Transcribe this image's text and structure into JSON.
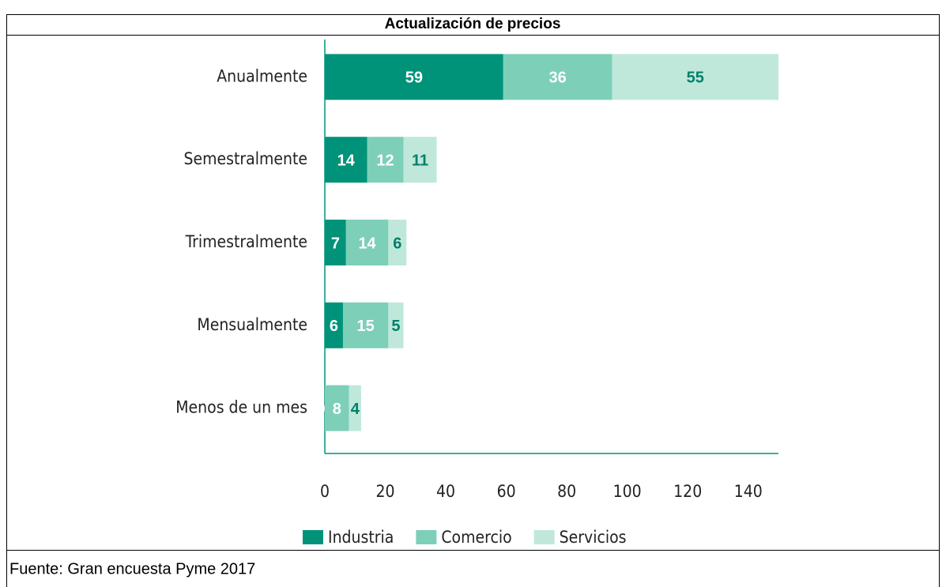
{
  "chart_data": {
    "type": "stacked_barh",
    "title": "Actualización de precios",
    "categories": [
      "Anualmente",
      "Semestralmente",
      "Trimestralmente",
      "Mensualmente",
      "Menos de un mes"
    ],
    "series": [
      {
        "name": "Industria",
        "color": "#00937a",
        "label_color": "#ffffff",
        "values": [
          59,
          14,
          7,
          6,
          0
        ]
      },
      {
        "name": "Comercio",
        "color": "#7dcfb8",
        "label_color": "#ffffff",
        "values": [
          36,
          12,
          14,
          15,
          8
        ]
      },
      {
        "name": "Servicios",
        "color": "#bfe8db",
        "label_color": "#00806a",
        "values": [
          55,
          11,
          6,
          5,
          4
        ]
      }
    ],
    "xlim": [
      0,
      150
    ],
    "xticks": [
      0,
      20,
      40,
      60,
      80,
      100,
      120,
      140
    ],
    "legend": "bottom",
    "source": "Fuente: Gran encuesta Pyme 2017"
  }
}
